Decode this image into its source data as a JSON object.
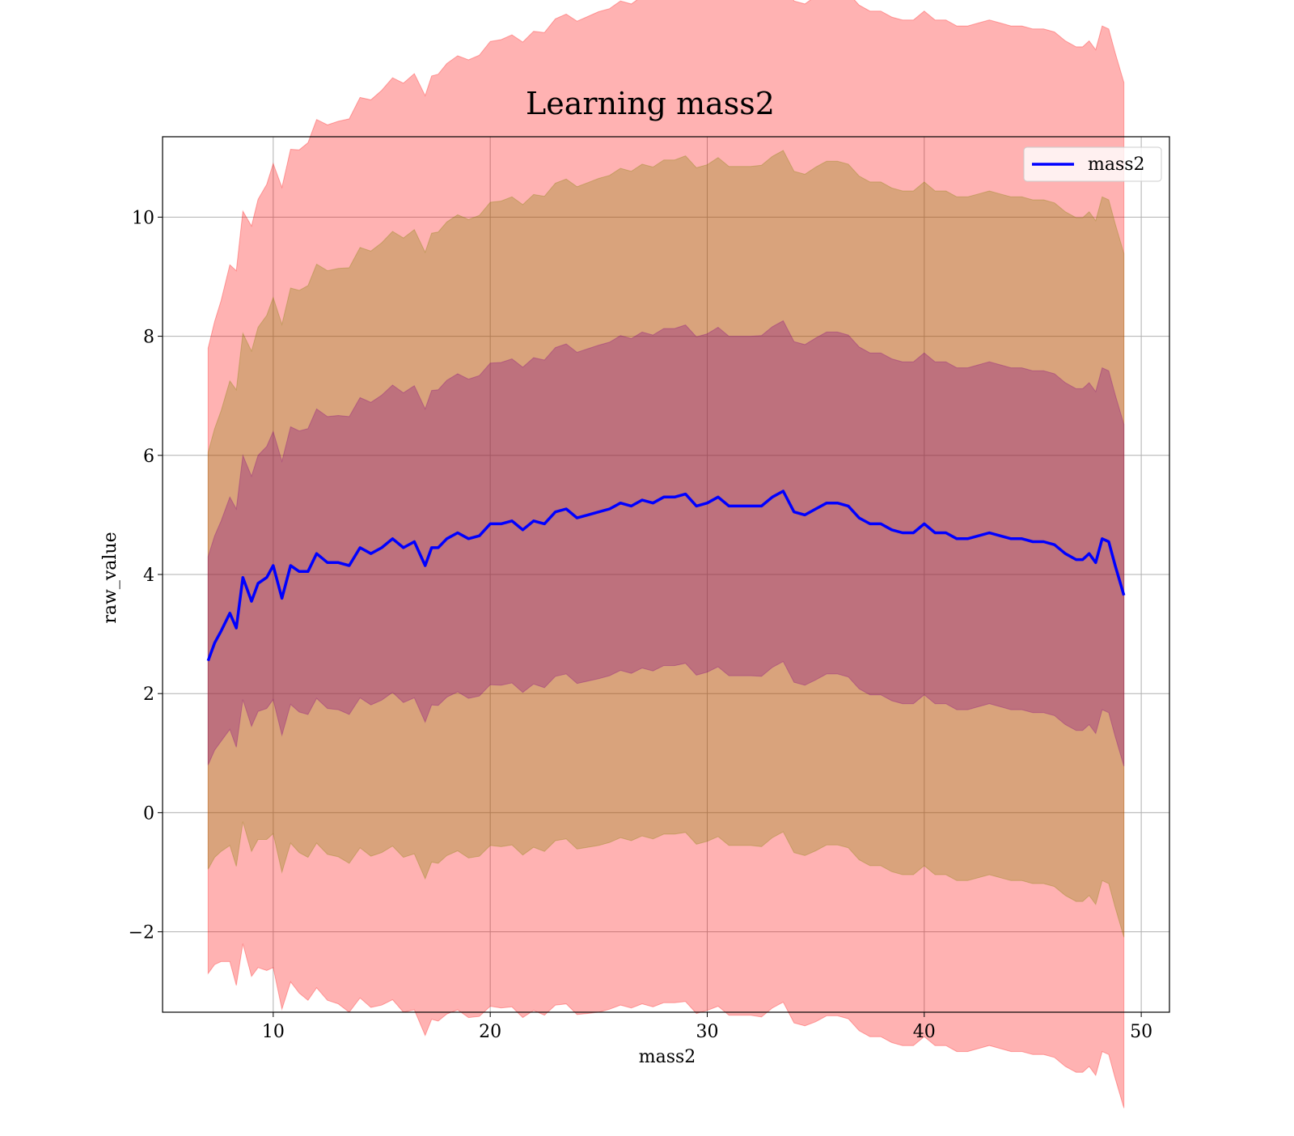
{
  "chart_data": {
    "type": "area",
    "title": "Learning mass2",
    "xlabel": "mass2",
    "ylabel": "raw_value",
    "xlim": [
      4.9,
      51.3
    ],
    "ylim": [
      -3.35,
      11.35
    ],
    "xticks": [
      10,
      20,
      30,
      40,
      50
    ],
    "xtick_labels": [
      "10",
      "20",
      "30",
      "40",
      "50"
    ],
    "yticks": [
      -2,
      0,
      2,
      4,
      6,
      8,
      10
    ],
    "ytick_labels": [
      "−2",
      "0",
      "2",
      "4",
      "6",
      "8",
      "10"
    ],
    "grid": true,
    "legend": {
      "position": "top-right",
      "entries": [
        "mass2"
      ]
    },
    "colors": {
      "mean_line": "#0000ff",
      "band_outer": "#ff0000",
      "band_middle": "#808000",
      "band_inner": "#800080"
    },
    "bands": {
      "outer_sigma": 3,
      "middle_sigma": 2,
      "inner_sigma": 1
    },
    "series": [
      {
        "name": "mass2",
        "x": [
          7.0,
          7.3,
          7.6,
          8.0,
          8.3,
          8.6,
          9.0,
          9.3,
          9.7,
          10.0,
          10.4,
          10.8,
          11.2,
          11.6,
          12.0,
          12.5,
          13.0,
          13.5,
          14.0,
          14.5,
          15.0,
          15.5,
          16.0,
          16.5,
          17.0,
          17.3,
          17.6,
          18.0,
          18.5,
          19.0,
          19.5,
          20.0,
          20.5,
          21.0,
          21.5,
          22.0,
          22.5,
          23.0,
          23.5,
          24.0,
          24.5,
          25.0,
          25.5,
          26.0,
          26.5,
          27.0,
          27.5,
          28.0,
          28.5,
          29.0,
          29.5,
          30.0,
          30.5,
          31.0,
          31.5,
          32.0,
          32.5,
          33.0,
          33.5,
          34.0,
          34.5,
          35.0,
          35.5,
          36.0,
          36.5,
          37.0,
          37.5,
          38.0,
          38.5,
          39.0,
          39.5,
          40.0,
          40.5,
          41.0,
          41.5,
          42.0,
          42.5,
          43.0,
          43.5,
          44.0,
          44.5,
          45.0,
          45.5,
          46.0,
          46.5,
          47.0,
          47.3,
          47.6,
          47.9,
          48.2,
          48.5,
          48.8,
          49.2
        ],
        "mean": [
          2.55,
          2.85,
          3.05,
          3.35,
          3.1,
          3.95,
          3.55,
          3.85,
          3.95,
          4.15,
          3.6,
          4.15,
          4.05,
          4.05,
          4.35,
          4.2,
          4.2,
          4.15,
          4.45,
          4.35,
          4.45,
          4.6,
          4.45,
          4.55,
          4.15,
          4.45,
          4.45,
          4.6,
          4.7,
          4.6,
          4.65,
          4.85,
          4.85,
          4.9,
          4.75,
          4.9,
          4.85,
          5.05,
          5.1,
          4.95,
          5.0,
          5.05,
          5.1,
          5.2,
          5.15,
          5.25,
          5.2,
          5.3,
          5.3,
          5.35,
          5.15,
          5.2,
          5.3,
          5.15,
          5.15,
          5.15,
          5.15,
          5.3,
          5.4,
          5.05,
          5.0,
          5.1,
          5.2,
          5.2,
          5.15,
          4.95,
          4.85,
          4.85,
          4.75,
          4.7,
          4.7,
          4.85,
          4.7,
          4.7,
          4.6,
          4.6,
          4.65,
          4.7,
          4.65,
          4.6,
          4.6,
          4.55,
          4.55,
          4.5,
          4.35,
          4.25,
          4.25,
          4.35,
          4.2,
          4.6,
          4.55,
          4.15,
          3.65
        ],
        "std": [
          1.75,
          1.8,
          1.85,
          1.95,
          2.0,
          2.05,
          2.1,
          2.15,
          2.2,
          2.25,
          2.3,
          2.33,
          2.36,
          2.4,
          2.43,
          2.45,
          2.47,
          2.5,
          2.52,
          2.54,
          2.56,
          2.58,
          2.6,
          2.62,
          2.63,
          2.64,
          2.65,
          2.66,
          2.67,
          2.68,
          2.69,
          2.7,
          2.71,
          2.72,
          2.73,
          2.74,
          2.75,
          2.76,
          2.77,
          2.78,
          2.79,
          2.8,
          2.8,
          2.81,
          2.81,
          2.82,
          2.82,
          2.83,
          2.83,
          2.84,
          2.84,
          2.84,
          2.85,
          2.85,
          2.85,
          2.85,
          2.86,
          2.86,
          2.86,
          2.86,
          2.86,
          2.87,
          2.87,
          2.87,
          2.87,
          2.87,
          2.87,
          2.87,
          2.87,
          2.87,
          2.87,
          2.87,
          2.87,
          2.87,
          2.87,
          2.87,
          2.87,
          2.87,
          2.87,
          2.87,
          2.87,
          2.87,
          2.87,
          2.87,
          2.87,
          2.87,
          2.87,
          2.87,
          2.87,
          2.87,
          2.87,
          2.87,
          2.87
        ]
      }
    ]
  }
}
